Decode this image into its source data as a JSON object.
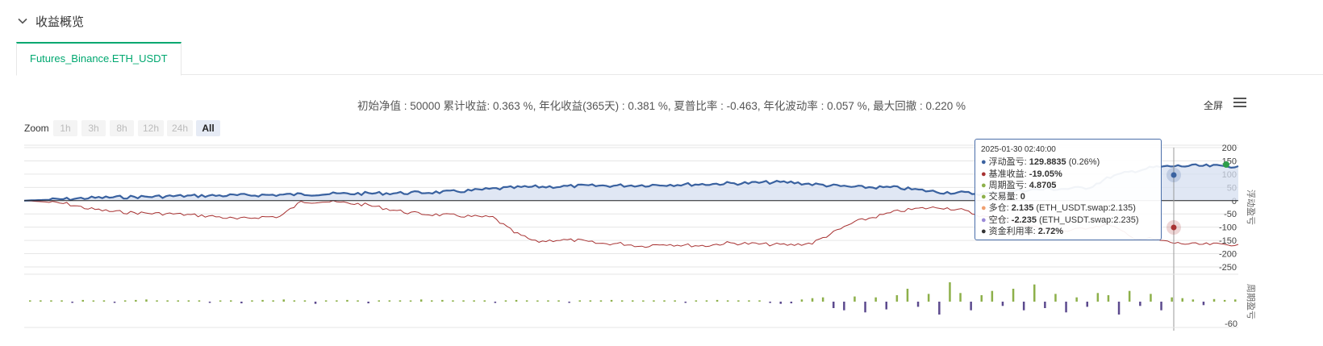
{
  "section": {
    "title": "收益概览",
    "icon": "chevron-down-icon"
  },
  "tabs": [
    {
      "label": "Futures_Binance.ETH_USDT",
      "active": true
    }
  ],
  "summary": "初始净值 : 50000 累计收益: 0.363 %, 年化收益(365天) : 0.381 %, 夏普比率 : -0.463, 年化波动率 : 0.057 %, 最大回撤 : 0.220 %",
  "toolbar": {
    "fullscreen_label": "全屏",
    "menu_icon": "hamburger-menu-icon"
  },
  "zoom": {
    "label": "Zoom",
    "buttons": [
      "1h",
      "3h",
      "8h",
      "12h",
      "24h",
      "All"
    ],
    "active": "All"
  },
  "colors": {
    "accent": "#00a870",
    "floating": "#3a62a0",
    "benchmark": "#a83232",
    "period_pos": "#8db04a",
    "period_neg": "#5c4a8e",
    "fill": "#d5dff0"
  },
  "tooltip": {
    "time": "2025-01-30 02:40:00",
    "rows": [
      {
        "color": "#3a62a0",
        "label": "浮动盈亏: ",
        "value": "129.8835",
        "extra": " (0.26%)"
      },
      {
        "color": "#a83232",
        "label": "基准收益: ",
        "value": "-19.05%",
        "extra": ""
      },
      {
        "color": "#8db04a",
        "label": "周期盈亏: ",
        "value": "4.8705",
        "extra": ""
      },
      {
        "color": "#8db04a",
        "label": "交易量: ",
        "value": "0",
        "extra": ""
      },
      {
        "color": "#f0a070",
        "label": "多仓: ",
        "value": "2.135",
        "extra": " (ETH_USDT.swap:2.135)"
      },
      {
        "color": "#9a8ad8",
        "label": "空仓: ",
        "value": "-2.235",
        "extra": " (ETH_USDT.swap:2.235)"
      },
      {
        "color": "#333333",
        "label": "资金利用率: ",
        "value": "2.72%",
        "extra": ""
      }
    ]
  },
  "chart_data": {
    "type": "line",
    "top_panel": {
      "ylabel": "浮动盈亏",
      "yticks": [
        "200",
        "150",
        "100",
        "50",
        "0",
        "-50",
        "-100",
        "-150",
        "-200",
        "-250"
      ],
      "ylim": [
        -250,
        200
      ],
      "series": [
        {
          "name": "浮动盈亏",
          "values": [
            0,
            3,
            6,
            10,
            12,
            14,
            15,
            17,
            18,
            19,
            20,
            21,
            22,
            24,
            25,
            26,
            27,
            28,
            29,
            31,
            33,
            38,
            44,
            49,
            52,
            53,
            55,
            56,
            57,
            58,
            60,
            61,
            62,
            65,
            66,
            69,
            69,
            62,
            56,
            51,
            50,
            49,
            40,
            32,
            30,
            25,
            35,
            40,
            43,
            45,
            50,
            90,
            110,
            125,
            130,
            131,
            130,
            130
          ]
        },
        {
          "name": "基准收益",
          "values": [
            0,
            -5,
            -12,
            -30,
            -40,
            -45,
            -48,
            -50,
            -55,
            -60,
            -70,
            -62,
            -60,
            -5,
            -3,
            -8,
            -15,
            -30,
            -45,
            -52,
            -55,
            -60,
            -63,
            -120,
            -155,
            -148,
            -150,
            -162,
            -162,
            -172,
            -163,
            -168,
            -170,
            -160,
            -162,
            -165,
            -167,
            -160,
            -120,
            -80,
            -60,
            -40,
            -30,
            -25,
            -35,
            -60,
            -70,
            -90,
            -110,
            -115,
            -100,
            -90,
            -140,
            -145,
            -160,
            -165,
            -165,
            -165
          ]
        }
      ]
    },
    "bottom_panel": {
      "ylabel": "周期盈亏",
      "yticks": [
        "-60"
      ],
      "series": [
        {
          "name": "周期盈亏",
          "values": [
            3,
            3,
            3,
            3,
            -2,
            4,
            2,
            3,
            -2,
            3,
            4,
            5,
            3,
            3,
            3,
            3,
            3,
            -1,
            2,
            3,
            -4,
            3,
            4,
            3,
            5,
            3,
            3,
            -5,
            3,
            3,
            4,
            3,
            -4,
            3,
            3,
            3,
            2,
            5,
            3,
            4,
            3,
            3,
            3,
            3,
            -3,
            3,
            4,
            3,
            2,
            3,
            3,
            -2,
            3,
            3,
            3,
            4,
            3,
            3,
            2,
            3,
            3,
            3,
            -2,
            3,
            3,
            4,
            3,
            3,
            3,
            3,
            -3,
            -5,
            -4,
            5,
            8,
            10,
            -15,
            -20,
            12,
            -25,
            10,
            -18,
            15,
            30,
            -12,
            18,
            -30,
            45,
            20,
            -20,
            15,
            25,
            -10,
            30,
            -20,
            40,
            -15,
            18,
            -25,
            10,
            -12,
            20,
            15,
            -30,
            25,
            -10,
            18,
            -20,
            10,
            8,
            5,
            -8,
            6,
            4,
            5
          ]
        }
      ]
    }
  }
}
